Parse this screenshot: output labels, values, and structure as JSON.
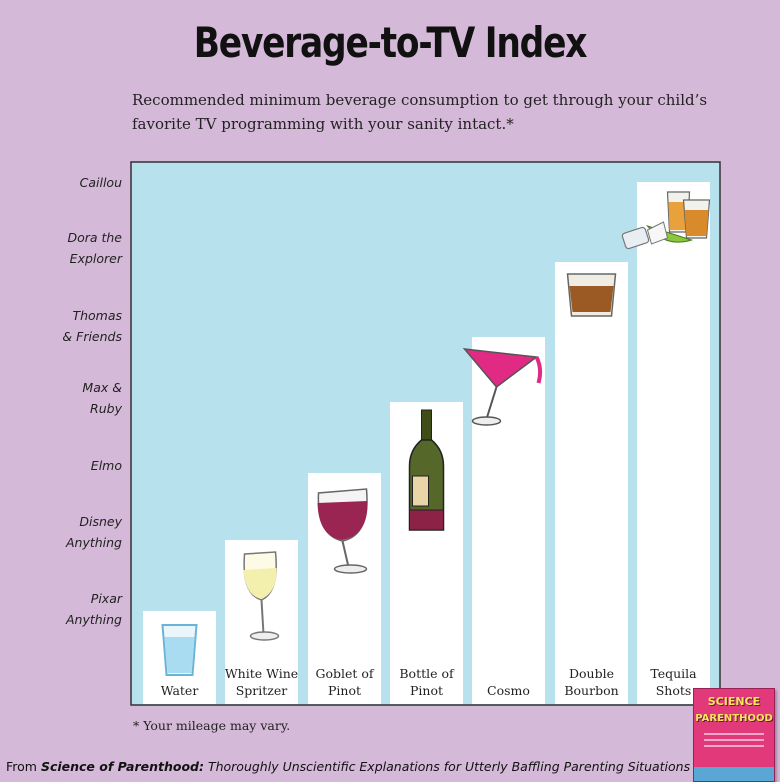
{
  "title": "Beverage-to-TV Index",
  "subtitle": "Recommended minimum beverage consumption to get through your child’s favorite TV programming with your sanity intact.*",
  "footnote": "* Your mileage may vary.",
  "source": {
    "prefix": "From ",
    "book": "Science of Parenthood:",
    "rest": " Thoroughly Unscientific Explanations for Utterly Baffling Parenting Situations"
  },
  "book_cover": {
    "line1": "SCIENCE",
    "line2": "PARENTHOOD"
  },
  "colors": {
    "background": "#d5b9d8",
    "plot": "#b7e1ec",
    "bar": "#ffffff"
  },
  "chart_data": {
    "type": "bar",
    "categories": [
      [
        "Water"
      ],
      [
        "White Wine",
        "Spritzer"
      ],
      [
        "Goblet of",
        "Pinot"
      ],
      [
        "Bottle of",
        "Pinot"
      ],
      [
        "Cosmo"
      ],
      [
        "Double",
        "Bourbon"
      ],
      [
        "Tequila",
        "Shots"
      ]
    ],
    "y_categories": [
      [
        "Pixar",
        "Anything"
      ],
      [
        "Disney",
        "Anything"
      ],
      [
        "Elmo"
      ],
      [
        "Max &",
        "Ruby"
      ],
      [
        "Thomas",
        "& Friends"
      ],
      [
        "Dora the",
        "Explorer"
      ],
      [
        "Caillou"
      ]
    ],
    "values": [
      1,
      2,
      3,
      4,
      5,
      6,
      7
    ],
    "icons": [
      "water-glass-icon",
      "wine-spritzer-icon",
      "wine-goblet-icon",
      "wine-bottle-icon",
      "cosmo-glass-icon",
      "bourbon-glass-icon",
      "tequila-shots-icon"
    ],
    "grid": false,
    "legend": "none"
  }
}
